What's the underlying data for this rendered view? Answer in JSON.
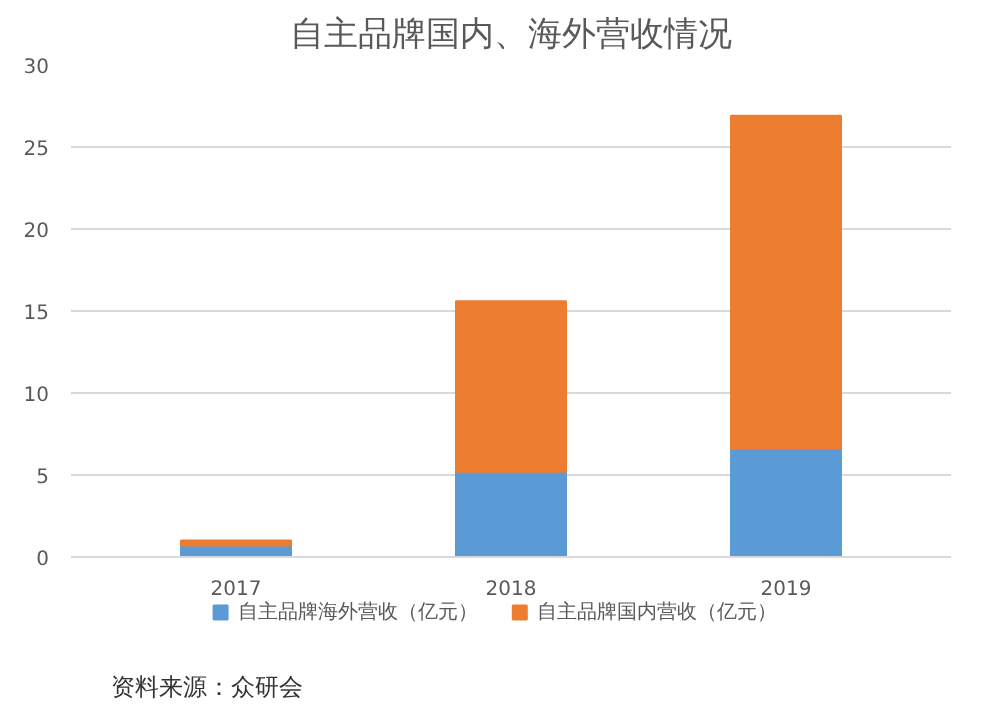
{
  "chart_data": {
    "type": "bar",
    "title": "自主品牌国内、海外营收情况",
    "categories": [
      "2017",
      "2018",
      "2019"
    ],
    "stacked": true,
    "series": [
      {
        "name": "自主品牌海外营收（亿元）",
        "color": "#5b9bd5",
        "values": [
          0.7,
          5.2,
          6.6
        ]
      },
      {
        "name": "自主品牌国内营收（亿元）",
        "color": "#ed7d31",
        "values": [
          0.3,
          10.4,
          20.3
        ]
      }
    ],
    "ylim": [
      0,
      30
    ],
    "yticks": [
      0,
      5,
      10,
      15,
      20,
      25,
      30
    ],
    "grid": "y",
    "legend": "bottom",
    "annotations": [
      "资料来源：众研会"
    ]
  }
}
